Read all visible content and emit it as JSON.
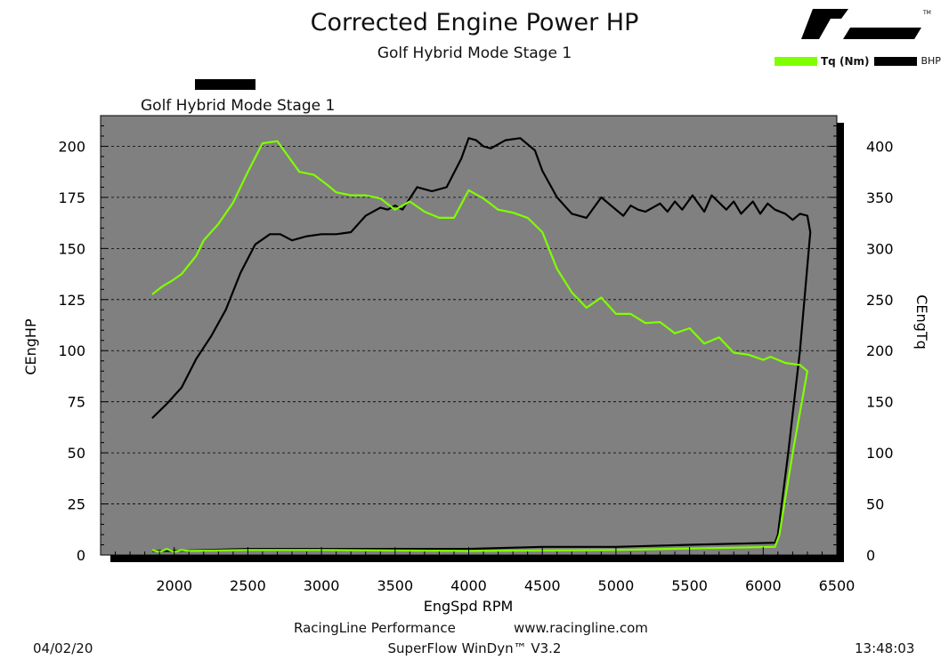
{
  "title": "Corrected Engine Power HP",
  "subtitle": "Golf Hybrid Mode Stage 1",
  "run_label": "Golf Hybrid Mode Stage 1",
  "legend": [
    {
      "label": "Tq (Nm)",
      "color": "#7fff00"
    },
    {
      "label": "BHP",
      "color": "#000000"
    }
  ],
  "footer": {
    "company": "RacingLine Performance",
    "url": "www.racingline.com",
    "date": "04/02/20",
    "software": "SuperFlow WinDyn™ V3.2",
    "time": "13:48:03"
  },
  "chart_data": {
    "type": "line",
    "xlabel": "EngSpd RPM",
    "ylabel": "CEngHP",
    "y2label": "CEngTq",
    "xlim": [
      1500,
      6500
    ],
    "ylim": [
      0,
      215
    ],
    "y2lim": [
      0,
      430
    ],
    "xticks": [
      2000,
      2500,
      3000,
      3500,
      4000,
      4500,
      5000,
      5500,
      6000,
      6500
    ],
    "yticks": [
      0,
      25,
      50,
      75,
      100,
      125,
      150,
      175,
      200
    ],
    "y2ticks": [
      0,
      50,
      100,
      150,
      200,
      250,
      300,
      350,
      400
    ],
    "grid": true,
    "plot_background": "#808080",
    "series": [
      {
        "name": "BHP",
        "axis": "left",
        "color": "#000000",
        "points": [
          [
            1850,
            67
          ],
          [
            1950,
            74
          ],
          [
            2050,
            82
          ],
          [
            2150,
            96
          ],
          [
            2250,
            107
          ],
          [
            2350,
            120
          ],
          [
            2450,
            138
          ],
          [
            2550,
            152
          ],
          [
            2650,
            157
          ],
          [
            2720,
            157
          ],
          [
            2800,
            154
          ],
          [
            2900,
            156
          ],
          [
            3000,
            157
          ],
          [
            3100,
            157
          ],
          [
            3200,
            158
          ],
          [
            3300,
            166
          ],
          [
            3400,
            170
          ],
          [
            3450,
            169
          ],
          [
            3500,
            171
          ],
          [
            3550,
            169
          ],
          [
            3650,
            180
          ],
          [
            3750,
            178
          ],
          [
            3850,
            180
          ],
          [
            3950,
            194
          ],
          [
            4000,
            204
          ],
          [
            4050,
            203
          ],
          [
            4100,
            200
          ],
          [
            4150,
            199
          ],
          [
            4250,
            203
          ],
          [
            4350,
            204
          ],
          [
            4450,
            198
          ],
          [
            4500,
            188
          ],
          [
            4600,
            175
          ],
          [
            4700,
            167
          ],
          [
            4800,
            165
          ],
          [
            4850,
            170
          ],
          [
            4900,
            175
          ],
          [
            4950,
            172
          ],
          [
            5050,
            166
          ],
          [
            5100,
            171
          ],
          [
            5150,
            169
          ],
          [
            5200,
            168
          ],
          [
            5300,
            172
          ],
          [
            5350,
            168
          ],
          [
            5400,
            173
          ],
          [
            5450,
            169
          ],
          [
            5520,
            176
          ],
          [
            5600,
            168
          ],
          [
            5650,
            176
          ],
          [
            5750,
            169
          ],
          [
            5800,
            173
          ],
          [
            5850,
            167
          ],
          [
            5930,
            173
          ],
          [
            5980,
            167
          ],
          [
            6030,
            172
          ],
          [
            6080,
            169
          ],
          [
            6150,
            167
          ],
          [
            6200,
            164
          ],
          [
            6250,
            167
          ],
          [
            6300,
            166
          ],
          [
            6320,
            158
          ],
          [
            6250,
            100
          ],
          [
            6170,
            50
          ],
          [
            6100,
            10
          ],
          [
            6080,
            6
          ],
          [
            5500,
            5
          ],
          [
            5000,
            4
          ],
          [
            4500,
            4
          ],
          [
            4000,
            3
          ],
          [
            3000,
            3
          ],
          [
            2500,
            3
          ],
          [
            2000,
            2
          ],
          [
            1850,
            2
          ]
        ]
      },
      {
        "name": "Tq (Nm)",
        "axis": "right",
        "color": "#7fff00",
        "points": [
          [
            1850,
            255
          ],
          [
            1920,
            263
          ],
          [
            1980,
            268
          ],
          [
            2050,
            275
          ],
          [
            2150,
            293
          ],
          [
            2200,
            308
          ],
          [
            2300,
            324
          ],
          [
            2400,
            345
          ],
          [
            2500,
            375
          ],
          [
            2600,
            403
          ],
          [
            2700,
            405
          ],
          [
            2780,
            389
          ],
          [
            2850,
            375
          ],
          [
            2950,
            372
          ],
          [
            3050,
            361
          ],
          [
            3100,
            355
          ],
          [
            3200,
            352
          ],
          [
            3300,
            352
          ],
          [
            3400,
            349
          ],
          [
            3500,
            338
          ],
          [
            3600,
            346
          ],
          [
            3700,
            336
          ],
          [
            3800,
            330
          ],
          [
            3900,
            330
          ],
          [
            4000,
            357
          ],
          [
            4100,
            349
          ],
          [
            4200,
            338
          ],
          [
            4300,
            335
          ],
          [
            4400,
            330
          ],
          [
            4500,
            316
          ],
          [
            4600,
            280
          ],
          [
            4700,
            257
          ],
          [
            4800,
            242
          ],
          [
            4900,
            252
          ],
          [
            5000,
            236
          ],
          [
            5100,
            236
          ],
          [
            5200,
            227
          ],
          [
            5300,
            228
          ],
          [
            5400,
            217
          ],
          [
            5500,
            222
          ],
          [
            5600,
            207
          ],
          [
            5700,
            213
          ],
          [
            5800,
            198
          ],
          [
            5900,
            196
          ],
          [
            6000,
            191
          ],
          [
            6050,
            194
          ],
          [
            6150,
            188
          ],
          [
            6250,
            186
          ],
          [
            6300,
            180
          ],
          [
            6200,
            100
          ],
          [
            6110,
            20
          ],
          [
            6080,
            8
          ],
          [
            5000,
            5
          ],
          [
            4000,
            4
          ],
          [
            3000,
            5
          ],
          [
            2500,
            5
          ],
          [
            2100,
            4
          ],
          [
            2050,
            5
          ],
          [
            2000,
            3
          ],
          [
            1950,
            6
          ],
          [
            1900,
            3
          ],
          [
            1850,
            5
          ]
        ]
      }
    ]
  }
}
